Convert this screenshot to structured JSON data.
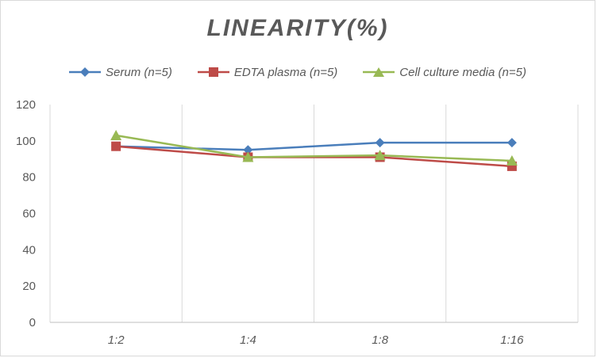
{
  "chart_data": {
    "type": "line",
    "title": "LINEARITY(%)",
    "xlabel": "",
    "ylabel": "",
    "categories": [
      "1:2",
      "1:4",
      "1:8",
      "1:16"
    ],
    "ylim": [
      0,
      120
    ],
    "yticks": [
      0,
      20,
      40,
      60,
      80,
      100,
      120
    ],
    "grid": "vertical-between-categories",
    "legend": "top",
    "series": [
      {
        "name": "Serum (n=5)",
        "values": [
          97,
          95,
          99,
          99
        ],
        "color": "#4a7ebb",
        "marker": "diamond"
      },
      {
        "name": "EDTA plasma (n=5)",
        "values": [
          97,
          91,
          91,
          86
        ],
        "color": "#be4b48",
        "marker": "square"
      },
      {
        "name": "Cell culture media (n=5)",
        "values": [
          103,
          91,
          92,
          89
        ],
        "color": "#98b954",
        "marker": "triangle"
      }
    ]
  }
}
